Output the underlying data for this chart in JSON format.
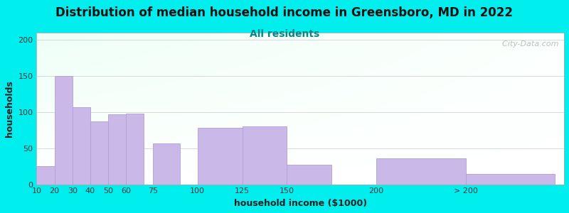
{
  "title": "Distribution of median household income in Greensboro, MD in 2022",
  "subtitle": "All residents",
  "xlabel": "household income ($1000)",
  "ylabel": "households",
  "background_color": "#00EEEE",
  "bar_color": "#C9B8E8",
  "bar_edge_color": "#B0A0D8",
  "values": [
    25,
    150,
    107,
    87,
    97,
    98,
    57,
    78,
    80,
    27,
    36,
    14
  ],
  "bar_widths": [
    10,
    10,
    10,
    10,
    10,
    10,
    15,
    25,
    25,
    25,
    50,
    50
  ],
  "bar_lefts": [
    10,
    20,
    30,
    40,
    50,
    60,
    75,
    100,
    125,
    150,
    200,
    250
  ],
  "xlim": [
    10,
    305
  ],
  "ylim": [
    0,
    210
  ],
  "yticks": [
    0,
    50,
    100,
    150,
    200
  ],
  "xtick_labels": [
    "10",
    "20",
    "30",
    "40",
    "50",
    "60",
    "75",
    "100",
    "125",
    "150",
    "200",
    "> 200"
  ],
  "xtick_positions": [
    10,
    20,
    30,
    40,
    50,
    60,
    75,
    100,
    125,
    150,
    200,
    250
  ],
  "watermark": "  City-Data.com",
  "title_fontsize": 12,
  "subtitle_fontsize": 10,
  "label_fontsize": 9,
  "tick_fontsize": 8,
  "subtitle_color": "#008888",
  "title_color": "#111111"
}
